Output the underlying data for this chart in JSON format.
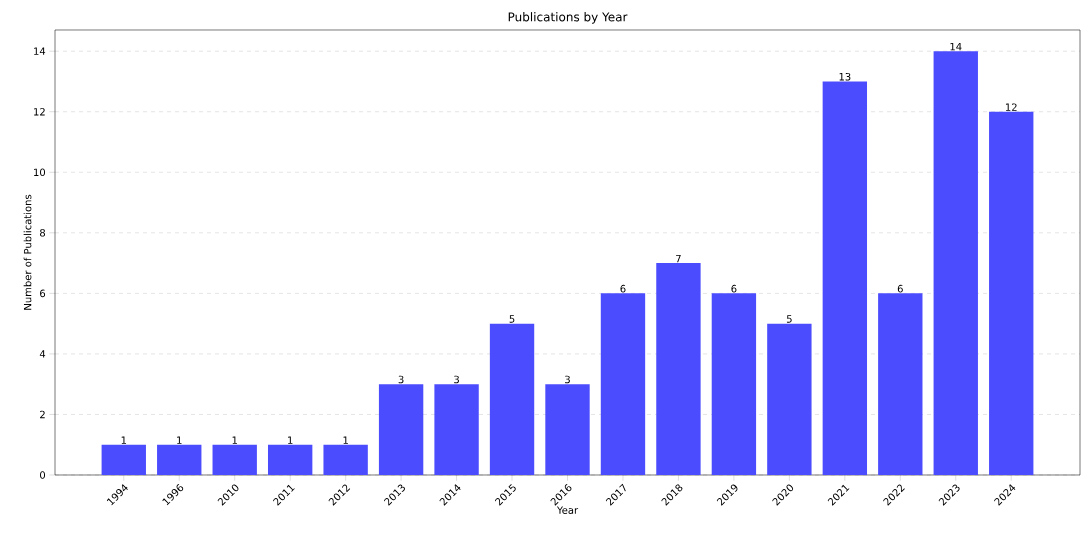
{
  "chart_data": {
    "type": "bar",
    "title": "Publications by Year",
    "xlabel": "Year",
    "ylabel": "Number of Publications",
    "categories": [
      "1994",
      "1996",
      "2010",
      "2011",
      "2012",
      "2013",
      "2014",
      "2015",
      "2016",
      "2017",
      "2018",
      "2019",
      "2020",
      "2021",
      "2022",
      "2023",
      "2024"
    ],
    "values": [
      1,
      1,
      1,
      1,
      1,
      3,
      3,
      5,
      3,
      6,
      7,
      6,
      5,
      13,
      6,
      14,
      12
    ],
    "color": "#4c4cff",
    "ylim": [
      0,
      14.7
    ],
    "yticks": [
      0,
      2,
      4,
      6,
      8,
      10,
      12,
      14
    ],
    "grid": "y",
    "data_labels": true
  }
}
